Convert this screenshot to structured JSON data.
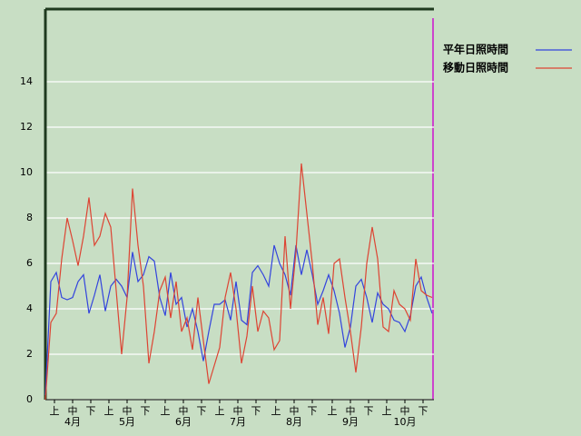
{
  "chart_data": {
    "type": "line",
    "series": [
      {
        "name": "平年日照時間",
        "color": "#3344dd",
        "values": [
          0.2,
          5.2,
          5.6,
          4.5,
          4.4,
          4.5,
          5.2,
          5.5,
          3.8,
          4.6,
          5.5,
          3.9,
          5.0,
          5.3,
          5.0,
          4.5,
          6.5,
          5.2,
          5.5,
          6.3,
          6.1,
          4.5,
          3.7,
          5.6,
          4.2,
          4.5,
          3.2,
          4.0,
          3.0,
          1.7,
          3.0,
          4.2,
          4.2,
          4.4,
          3.5,
          5.2,
          3.5,
          3.3,
          5.6,
          5.9,
          5.5,
          5.0,
          6.8,
          6.0,
          5.5,
          4.6,
          6.8,
          5.5,
          6.6,
          5.5,
          4.2,
          4.8,
          5.5,
          4.8,
          3.8,
          2.3,
          3.2,
          5.0,
          5.3,
          4.5,
          3.4,
          4.7,
          4.2,
          4.0,
          3.5,
          3.4,
          3.0,
          3.7,
          5.0,
          5.4,
          4.5,
          3.8
        ]
      },
      {
        "name": "移動日照時間",
        "color": "#dd4433",
        "values": [
          0,
          3.4,
          3.8,
          6.2,
          8.0,
          7.0,
          5.9,
          7.2,
          8.9,
          6.8,
          7.2,
          8.2,
          7.6,
          4.8,
          2.0,
          4.5,
          9.3,
          6.8,
          5.0,
          1.6,
          3.0,
          4.8,
          5.4,
          3.6,
          5.2,
          3.0,
          3.6,
          2.2,
          4.5,
          2.6,
          0.7,
          1.5,
          2.3,
          4.5,
          5.6,
          4.0,
          1.6,
          2.8,
          5.0,
          3.0,
          3.9,
          3.6,
          2.2,
          2.6,
          7.2,
          4.0,
          6.5,
          10.4,
          8.2,
          6.0,
          3.3,
          4.5,
          2.9,
          6.0,
          6.2,
          4.5,
          3.0,
          1.2,
          3.2,
          6.0,
          7.6,
          6.2,
          3.2,
          3.0,
          4.8,
          4.2,
          4.0,
          3.5,
          6.2,
          4.8,
          4.6,
          4.5
        ]
      }
    ],
    "x": [
      0,
      3,
      6,
      9,
      12,
      15,
      18,
      21,
      24,
      27,
      30,
      33,
      36,
      39,
      42,
      45,
      48,
      51,
      54,
      57,
      60,
      63,
      66,
      69,
      72,
      75,
      78,
      81,
      84,
      87,
      90,
      93,
      96,
      99,
      102,
      105,
      108,
      111,
      114,
      117,
      120,
      123,
      126,
      129,
      132,
      135,
      138,
      141,
      144,
      147,
      150,
      153,
      156,
      159,
      162,
      165,
      168,
      171,
      174,
      177,
      180,
      183,
      186,
      189,
      192,
      195,
      198,
      201,
      204,
      207,
      210,
      213
    ],
    "xlim": [
      0,
      214
    ],
    "xticks": [
      {
        "value": 5,
        "label": "上"
      },
      {
        "value": 15,
        "label": "中"
      },
      {
        "value": 25,
        "label": "下"
      },
      {
        "value": 35,
        "label": "上"
      },
      {
        "value": 45,
        "label": "中"
      },
      {
        "value": 55,
        "label": "下"
      },
      {
        "value": 66,
        "label": "上"
      },
      {
        "value": 76,
        "label": "中"
      },
      {
        "value": 86,
        "label": "下"
      },
      {
        "value": 96,
        "label": "上"
      },
      {
        "value": 106,
        "label": "中"
      },
      {
        "value": 116,
        "label": "下"
      },
      {
        "value": 127,
        "label": "上"
      },
      {
        "value": 137,
        "label": "中"
      },
      {
        "value": 147,
        "label": "下"
      },
      {
        "value": 158,
        "label": "上"
      },
      {
        "value": 168,
        "label": "中"
      },
      {
        "value": 178,
        "label": "下"
      },
      {
        "value": 188,
        "label": "上"
      },
      {
        "value": 198,
        "label": "中"
      },
      {
        "value": 208,
        "label": "下"
      }
    ],
    "month_labels": [
      {
        "value": 15,
        "label": "4月"
      },
      {
        "value": 45,
        "label": "5月"
      },
      {
        "value": 76,
        "label": "6月"
      },
      {
        "value": 106,
        "label": "7月"
      },
      {
        "value": 137,
        "label": "8月"
      },
      {
        "value": 168,
        "label": "9月"
      },
      {
        "value": 198,
        "label": "10月"
      }
    ],
    "ylim": [
      0,
      17.2
    ],
    "yticks": [
      0,
      2,
      4,
      6,
      8,
      10,
      12,
      14
    ],
    "grid": true
  }
}
